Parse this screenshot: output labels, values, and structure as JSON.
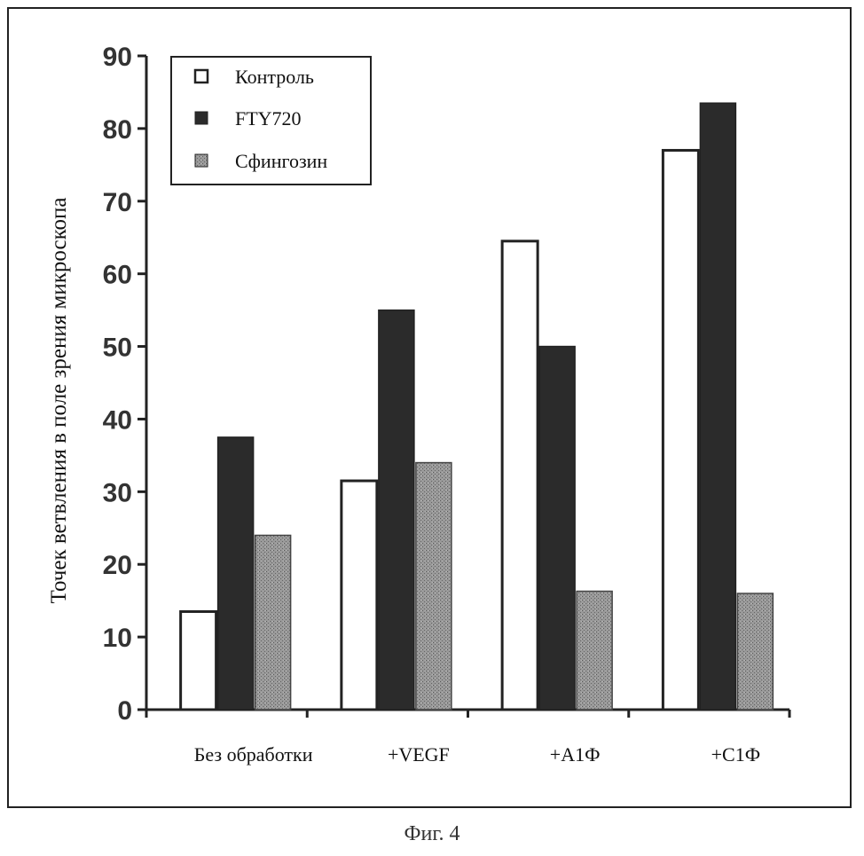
{
  "caption": "Фиг. 4",
  "chart_data": {
    "type": "bar",
    "ylabel": "Точек ветвления в поле зрения микроскопа",
    "xlabel": "",
    "ylim": [
      0,
      90
    ],
    "yticks": [
      0,
      10,
      20,
      30,
      40,
      50,
      60,
      70,
      80,
      90
    ],
    "categories": [
      "Без обработки",
      "+VEGF",
      "+А1Ф",
      "+С1Ф"
    ],
    "series": [
      {
        "name": "Контроль",
        "color": "#ffffff",
        "values": [
          13.5,
          31.5,
          64.5,
          77
        ]
      },
      {
        "name": "FTY720",
        "color": "#2b2b2b",
        "values": [
          37.5,
          55,
          50,
          83.5
        ]
      },
      {
        "name": "Сфингозин",
        "color": "#8c8c8c",
        "values": [
          24,
          34,
          16.3,
          16
        ]
      }
    ],
    "legend_position": "top-left",
    "grid": false
  }
}
